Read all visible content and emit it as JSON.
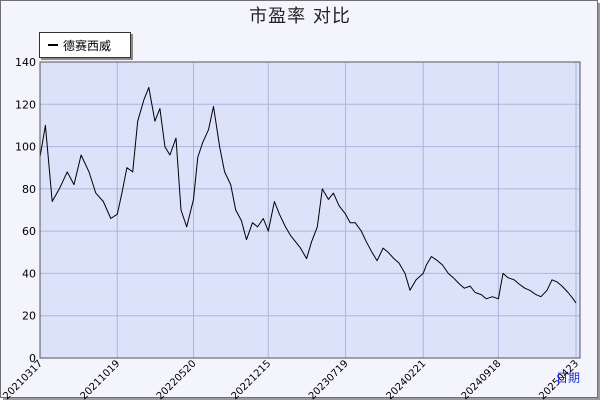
{
  "chart_data": {
    "type": "line",
    "title": "市盈率  对比",
    "xlabel": "",
    "ylabel": "",
    "ylim": [
      0,
      140
    ],
    "yticks": [
      0,
      20,
      40,
      60,
      80,
      100,
      120,
      140
    ],
    "x_tick_labels": [
      "20210317",
      "20211019",
      "20220520",
      "20221215",
      "20230719",
      "20240221",
      "20240918",
      "20250423"
    ],
    "grid": true,
    "legend_position": "top-left",
    "colors": {
      "plot_background": "#dde2fb",
      "line": "#000000",
      "grid": "#aab6dc"
    },
    "series": [
      {
        "name": "德赛西威",
        "x": [
          "20210317",
          "20210401",
          "20210420",
          "20210510",
          "20210601",
          "20210620",
          "20210710",
          "20210801",
          "20210820",
          "20210910",
          "20211001",
          "20211019",
          "20211101",
          "20211115",
          "20211201",
          "20211215",
          "20220101",
          "20220115",
          "20220201",
          "20220215",
          "20220301",
          "20220315",
          "20220401",
          "20220415",
          "20220501",
          "20220520",
          "20220601",
          "20220615",
          "20220701",
          "20220715",
          "20220801",
          "20220815",
          "20220901",
          "20220915",
          "20221001",
          "20221015",
          "20221101",
          "20221115",
          "20221201",
          "20221215",
          "20230101",
          "20230115",
          "20230201",
          "20230215",
          "20230301",
          "20230315",
          "20230401",
          "20230415",
          "20230501",
          "20230515",
          "20230601",
          "20230615",
          "20230701",
          "20230719",
          "20230801",
          "20230815",
          "20230901",
          "20230915",
          "20231001",
          "20231015",
          "20231101",
          "20231115",
          "20231201",
          "20231215",
          "20240101",
          "20240115",
          "20240201",
          "20240221",
          "20240301",
          "20240315",
          "20240401",
          "20240415",
          "20240501",
          "20240515",
          "20240601",
          "20240615",
          "20240701",
          "20240715",
          "20240801",
          "20240815",
          "20240901",
          "20240918",
          "20241001",
          "20241015",
          "20241101",
          "20241115",
          "20241201",
          "20241215",
          "20250101",
          "20250115",
          "20250201",
          "20250215",
          "20250301",
          "20250315",
          "20250401",
          "20250415",
          "20250423"
        ],
        "values": [
          95,
          110,
          74,
          80,
          88,
          82,
          96,
          88,
          78,
          74,
          66,
          68,
          78,
          90,
          88,
          112,
          122,
          128,
          112,
          118,
          100,
          96,
          104,
          70,
          62,
          75,
          95,
          102,
          108,
          119,
          100,
          88,
          82,
          70,
          65,
          56,
          64,
          62,
          66,
          60,
          74,
          68,
          62,
          58,
          55,
          52,
          47,
          55,
          62,
          80,
          75,
          78,
          72,
          68,
          64,
          64,
          60,
          55,
          50,
          46,
          52,
          50,
          47,
          45,
          40,
          32,
          37,
          40,
          44,
          48,
          46,
          44,
          40,
          38,
          35,
          33,
          34,
          31,
          30,
          28,
          29,
          28,
          40,
          38,
          37,
          35,
          33,
          32,
          30,
          29,
          32,
          37,
          36,
          34,
          31,
          28,
          26
        ]
      }
    ]
  },
  "header": {
    "period_link": "日期"
  }
}
